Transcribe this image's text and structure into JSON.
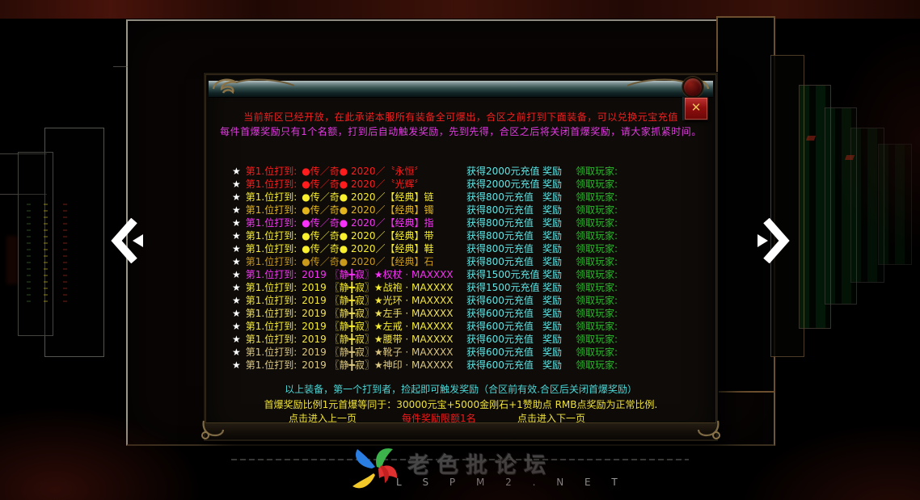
{
  "dialog": {
    "close_label": "✕",
    "notice_line1": "当前新区已经开放，在此承诺本服所有装备全可爆出，合区之前打到下面装备，可以兑换元宝充值",
    "notice_line2": "每件首爆奖励只有1个名额，打到后自动触发奖励，先到先得，合区之后将关闭首爆奖励，请大家抓紧时间。",
    "footer_line1": "以上装备，第一个打到者，捡起即可触发奖励（合区前有效.合区后关闭首爆奖励）",
    "footer_line2": "首爆奖励比例1元首爆等同于：30000元宝+5000金刚石+1赞助点  RMB点奖励为正常比例.",
    "pagination": {
      "prev": "点击进入上一页",
      "limit": "每件奖励限额1名",
      "next": "点击进入下一页"
    }
  },
  "list": {
    "star": "★",
    "claim_label": "领取玩家:",
    "bonus_label": "奖励",
    "rows": [
      {
        "label": "第1.位打到:",
        "item": "●传／奇●  2020／〝永恒〞",
        "reward": "获得2000元充值",
        "color": "#ff1c1c"
      },
      {
        "label": "第1.位打到:",
        "item": "●传／奇●  2020／〝光辉〞",
        "reward": "获得2000元充值",
        "color": "#ff1c1c"
      },
      {
        "label": "第1.位打到:",
        "item": "●传／奇●  2020／【经典】链",
        "reward": "获得800元充值",
        "color": "#f8ef2f"
      },
      {
        "label": "第1.位打到:",
        "item": "●传／奇●  2020／【经典】镯",
        "reward": "获得800元充值",
        "color": "#e2b51e"
      },
      {
        "label": "第1.位打到:",
        "item": "●传／奇●  2020／【经典】指",
        "reward": "获得800元充值",
        "color": "#f633f6"
      },
      {
        "label": "第1.位打到:",
        "item": "●传／奇●  2020／【经典】带",
        "reward": "获得800元充值",
        "color": "#f8ef2f"
      },
      {
        "label": "第1.位打到:",
        "item": "●传／奇●  2020／【经典】鞋",
        "reward": "获得800元充值",
        "color": "#f8ef2f"
      },
      {
        "label": "第1.位打到:",
        "item": "●传／奇●  2020／【经典】石",
        "reward": "获得800元充值",
        "color": "#c9991c"
      },
      {
        "label": "第1.位打到:",
        "item": "2019 〖静╋寂〗★权杖 · MAXXXX",
        "reward": "获得1500元充值",
        "color": "#f633f6"
      },
      {
        "label": "第1.位打到:",
        "item": "2019 〖静╋寂〗★战袍 · MAXXXX",
        "reward": "获得1500元充值",
        "color": "#f8ef2f"
      },
      {
        "label": "第1.位打到:",
        "item": "2019 〖静╋寂〗★光环 · MAXXXX",
        "reward": "获得600元充值",
        "color": "#f4e63a"
      },
      {
        "label": "第1.位打到:",
        "item": "2019 〖静╋寂〗★左手 · MAXXXX",
        "reward": "获得600元充值",
        "color": "#efe05c"
      },
      {
        "label": "第1.位打到:",
        "item": "2019 〖静╋寂〗★左戒 · MAXXXX",
        "reward": "获得600元充值",
        "color": "#f8ef2f"
      },
      {
        "label": "第1.位打到:",
        "item": "2019 〖静╋寂〗★腰带 · MAXXXX",
        "reward": "获得600元充值",
        "color": "#f2e44c"
      },
      {
        "label": "第1.位打到:",
        "item": "2019 〖静╋寂〗★靴子 · MAXXXX",
        "reward": "获得600元充值",
        "color": "#d8c47e"
      },
      {
        "label": "第1.位打到:",
        "item": "2019 〖静╋寂〗★神印 · MAXXXX",
        "reward": "获得600元充值",
        "color": "#dcc983"
      }
    ]
  },
  "watermark": {
    "site_name": "老色批论坛",
    "site_url": "L S P M 2 . N E T"
  },
  "colors": {
    "notice_red": "#f02020",
    "notice_magenta": "#e23ae2",
    "reward_cyan": "#5fe6e6",
    "claim_green": "#2eb82e",
    "footer_cyan": "#49d8d8",
    "footer_yellow": "#efe23a",
    "limit_red": "#ee1c1c",
    "link_yellow": "#efe23a",
    "star_white": "#ffffff"
  }
}
